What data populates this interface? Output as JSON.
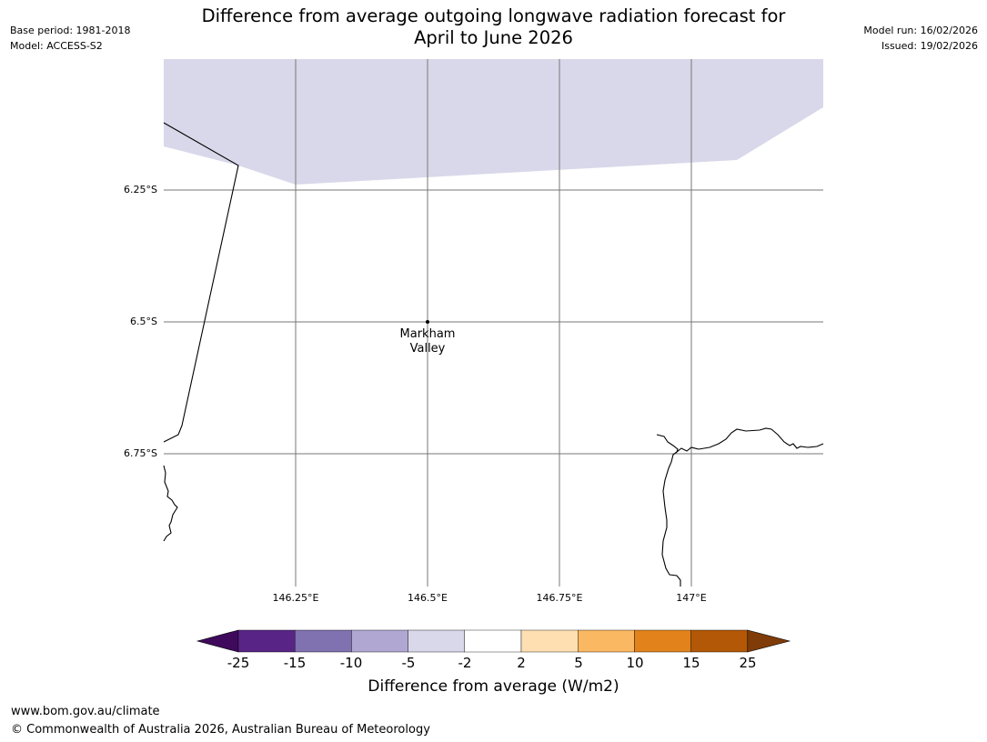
{
  "header": {
    "base_period": "Base period: 1981-2018",
    "model": "Model: ACCESS-S2",
    "title_line1": "Difference from average outgoing longwave radiation forecast for",
    "title_line2": "April to June 2026",
    "model_run": "Model run: 16/02/2026",
    "issued": "Issued: 19/02/2026"
  },
  "map": {
    "lat_labels": [
      "6.25°S",
      "6.5°S",
      "6.75°S"
    ],
    "lon_labels": [
      "146.25°E",
      "146.5°E",
      "146.75°E",
      "147°E"
    ],
    "place_line1": "Markham",
    "place_line2": "Valley",
    "shaded_category": "-5 to -2",
    "shade_color": "#d8d8ea"
  },
  "colorbar": {
    "ticks": [
      "-25",
      "-15",
      "-10",
      "-5",
      "-2",
      "2",
      "5",
      "10",
      "15",
      "25"
    ],
    "colors": [
      "#3f0a5c",
      "#582485",
      "#8071b1",
      "#b0a8d2",
      "#d8d8ea",
      "#ffffff",
      "#fddfb2",
      "#fbb862",
      "#e1821b",
      "#b35806",
      "#7f3b08"
    ],
    "label": "Difference from average (W/m2)"
  },
  "footer": {
    "url": "www.bom.gov.au/climate",
    "copyright": "© Commonwealth of Australia 2026, Australian Bureau of Meteorology"
  }
}
